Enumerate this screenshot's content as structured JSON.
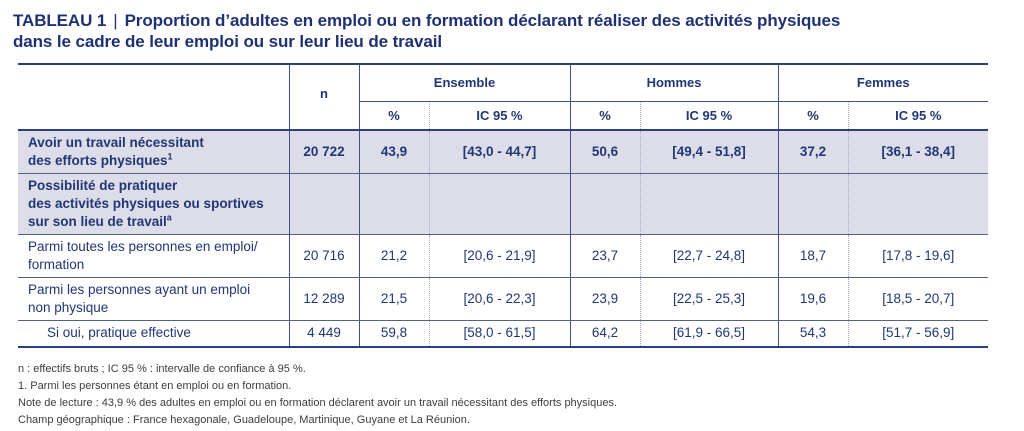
{
  "colors": {
    "navy_text": "#213775",
    "title_navy": "#1f3173",
    "rule_navy": "#2d3f80",
    "row_highlight": "#dcdde9",
    "dotted_separator": "#a8aec7",
    "footnote_gray": "#3d3d3d",
    "background": "#ffffff"
  },
  "title": {
    "label": "TABLEAU 1",
    "separator": "|",
    "line1": "Proportion d’adultes en emploi ou en formation déclarant réaliser des activités physiques",
    "line2": "dans le cadre de leur emploi ou sur leur lieu de travail"
  },
  "table": {
    "n_header": "n",
    "groups": [
      {
        "label": "Ensemble"
      },
      {
        "label": "Hommes"
      },
      {
        "label": "Femmes"
      }
    ],
    "subheaders": {
      "pct": "%",
      "ci": "IC 95 %"
    },
    "rows": [
      {
        "label_lines": [
          "Avoir un travail nécessitant",
          "des efforts physiques"
        ],
        "sup": "1",
        "highlight": true,
        "bold": true,
        "indent": false,
        "n": "20 722",
        "values": [
          "43,9",
          "[43,0 - 44,7]",
          "50,6",
          "[49,4 - 51,8]",
          "37,2",
          "[36,1 - 38,4]"
        ]
      },
      {
        "label_lines": [
          "Possibilité de pratiquer",
          "des activités physiques ou sportives",
          "sur son lieu de travail"
        ],
        "sup": "a",
        "highlight": true,
        "bold": true,
        "indent": false,
        "n": "",
        "values": [
          "",
          "",
          "",
          "",
          "",
          ""
        ]
      },
      {
        "label_lines": [
          "Parmi toutes les personnes en emploi/",
          "formation"
        ],
        "sup": "",
        "highlight": false,
        "bold": false,
        "indent": false,
        "n": "20 716",
        "values": [
          "21,2",
          "[20,6 - 21,9]",
          "23,7",
          "[22,7 - 24,8]",
          "18,7",
          "[17,8 - 19,6]"
        ]
      },
      {
        "label_lines": [
          "Parmi les personnes ayant un emploi",
          "non physique"
        ],
        "sup": "",
        "highlight": false,
        "bold": false,
        "indent": false,
        "n": "12 289",
        "values": [
          "21,5",
          "[20,6 - 22,3]",
          "23,9",
          "[22,5 - 25,3]",
          "19,6",
          "[18,5 - 20,7]"
        ]
      },
      {
        "label_lines": [
          "Si oui, pratique effective"
        ],
        "sup": "",
        "highlight": false,
        "bold": false,
        "indent": true,
        "n": "4 449",
        "values": [
          "59,8",
          "[58,0 - 61,5]",
          "64,2",
          "[61,9 - 66,5]",
          "54,3",
          "[51,7 - 56,9]"
        ]
      }
    ]
  },
  "footnotes": [
    "n : effectifs bruts ; IC 95 % : intervalle de confiance à 95 %.",
    "1. Parmi les personnes étant en emploi ou en formation.",
    "Note de lecture : 43,9 % des adultes en emploi ou en formation déclarent avoir un travail nécessitant des efforts physiques.",
    "Champ géographique : France hexagonale, Guadeloupe, Martinique, Guyane et La Réunion."
  ]
}
